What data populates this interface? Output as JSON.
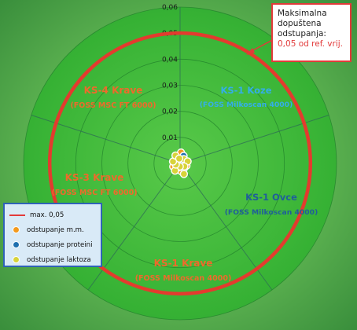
{
  "chart_data": {
    "type": "scatter",
    "title": "",
    "radial_axis": {
      "ticks": [
        "0,06",
        "0,05",
        "0,04",
        "0,03",
        "0,02",
        "0,01"
      ],
      "rings": [
        0.01,
        0.02,
        0.03,
        0.04,
        0.05,
        0.06
      ],
      "range": [
        0,
        0.06
      ]
    },
    "sectors": [
      {
        "name": "KS-1 Koze",
        "instrument": "(FOSS Milkoscan 4000)",
        "color": "#33aee8"
      },
      {
        "name": "KS-1 Ovce",
        "instrument": "(FOSS Milkoscan 4000)",
        "color": "#1f5f99"
      },
      {
        "name": "KS-1 Krave",
        "instrument": "(FOSS Milkoscan 4000)",
        "color": "#ee6a2b"
      },
      {
        "name": "KS-3 Krave",
        "instrument": "(FOSS MSC FT 6000)",
        "color": "#ee6a2b"
      },
      {
        "name": "KS-4 Krave",
        "instrument": "(FOSS MSC FT 6000)",
        "color": "#ee6a2b"
      }
    ],
    "max_limit": 0.05,
    "series": [
      {
        "name": "odstupanje m.m.",
        "color": "#f39a1e",
        "points": [
          {
            "angle": 5,
            "r": 0.0042
          },
          {
            "angle": 60,
            "r": 0.0018
          },
          {
            "angle": 110,
            "r": 0.0026
          },
          {
            "angle": 170,
            "r": 0.0031
          },
          {
            "angle": 245,
            "r": 0.0029
          },
          {
            "angle": 300,
            "r": 0.0023
          }
        ]
      },
      {
        "name": "odstupanje proteini",
        "color": "#1f6fae",
        "points": [
          {
            "angle": 25,
            "r": 0.0032
          },
          {
            "angle": 90,
            "r": 0.0015
          },
          {
            "angle": 140,
            "r": 0.0024
          },
          {
            "angle": 200,
            "r": 0.0016
          },
          {
            "angle": 275,
            "r": 0.002
          }
        ]
      },
      {
        "name": "odstupanje laktoza",
        "color": "#d8d33a",
        "points": [
          {
            "angle": 40,
            "r": 0.0022
          },
          {
            "angle": 75,
            "r": 0.003
          },
          {
            "angle": 125,
            "r": 0.002
          },
          {
            "angle": 160,
            "r": 0.0043
          },
          {
            "angle": 185,
            "r": 0.0012
          },
          {
            "angle": 215,
            "r": 0.0034
          },
          {
            "angle": 255,
            "r": 0.0017
          },
          {
            "angle": 285,
            "r": 0.0028
          },
          {
            "angle": 330,
            "r": 0.0035
          },
          {
            "angle": 350,
            "r": 0.0019
          }
        ]
      }
    ]
  },
  "callout": {
    "lines": [
      "Maksimalna",
      "dopuštena",
      "odstupanja:"
    ],
    "value": "0,05 od ref. vrij."
  },
  "legend": {
    "items": [
      {
        "label": "max. 0,05",
        "kind": "line",
        "color": "#e23a3a"
      },
      {
        "label": "odstupanje m.m.",
        "kind": "dot",
        "color": "#f39a1e"
      },
      {
        "label": "odstupanje proteini",
        "kind": "dot",
        "color": "#1f6fae"
      },
      {
        "label": "odstupanje laktoza",
        "kind": "dot",
        "color": "#d8d33a"
      }
    ]
  }
}
